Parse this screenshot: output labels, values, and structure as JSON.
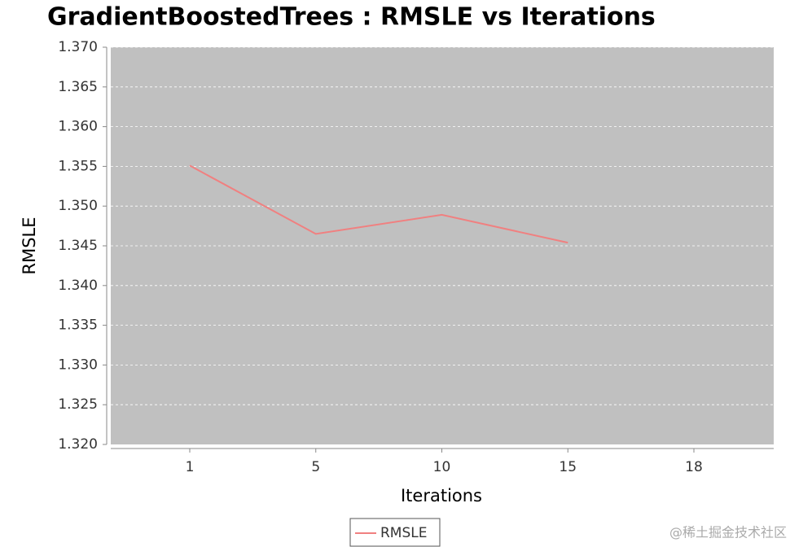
{
  "chart_data": {
    "type": "line",
    "title": "GradientBoostedTrees : RMSLE vs Iterations",
    "x_label": "Iterations",
    "y_label": "RMSLE",
    "categories": [
      "1",
      "5",
      "10",
      "15",
      "18"
    ],
    "series": [
      {
        "name": "RMSLE",
        "color": "#f08080",
        "values": [
          1.3551,
          1.3465,
          1.3489,
          1.3454,
          null
        ]
      }
    ],
    "ylim": [
      1.32,
      1.37
    ],
    "yticks": [
      {
        "value": 1.32,
        "label": "1.320"
      },
      {
        "value": 1.325,
        "label": "1.325"
      },
      {
        "value": 1.33,
        "label": "1.330"
      },
      {
        "value": 1.335,
        "label": "1.335"
      },
      {
        "value": 1.34,
        "label": "1.340"
      },
      {
        "value": 1.345,
        "label": "1.345"
      },
      {
        "value": 1.35,
        "label": "1.350"
      },
      {
        "value": 1.355,
        "label": "1.355"
      },
      {
        "value": 1.36,
        "label": "1.360"
      },
      {
        "value": 1.365,
        "label": "1.365"
      },
      {
        "value": 1.37,
        "label": "1.370"
      }
    ],
    "grid": true,
    "legend": "bottom",
    "watermark": "@稀土掘金技术社区"
  }
}
